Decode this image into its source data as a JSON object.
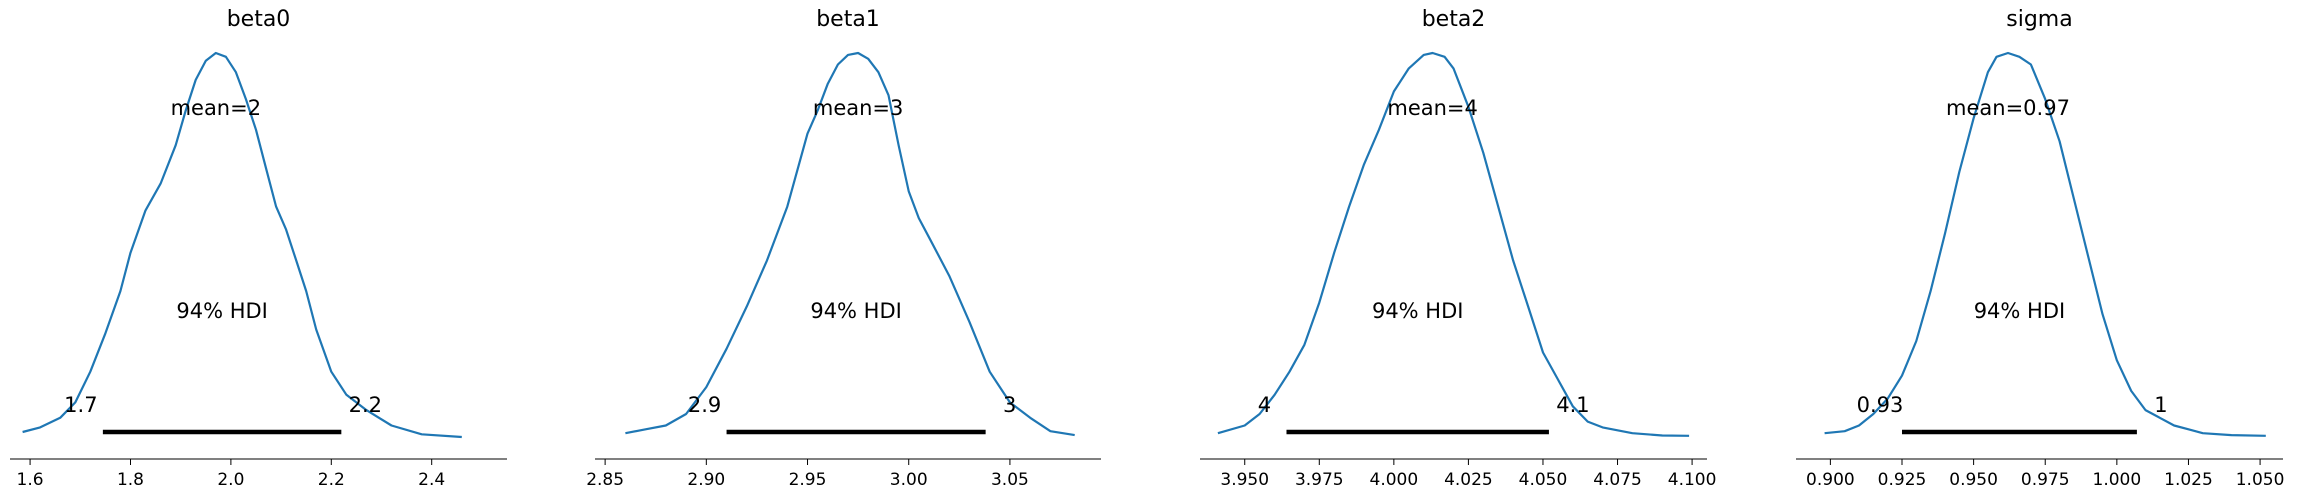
{
  "chart_data": [
    {
      "type": "line",
      "title": "beta0",
      "xlim": [
        1.56,
        2.55
      ],
      "xticks": [
        1.6,
        1.8,
        2.0,
        2.2,
        2.4
      ],
      "xtick_labels": [
        "1.6",
        "1.8",
        "2.0",
        "2.2",
        "2.4"
      ],
      "mean_label": "mean=2",
      "hdi_label": "94% HDI",
      "hdi": [
        1.745,
        2.22
      ],
      "hdi_labels": [
        "1.7",
        "2.2"
      ],
      "density": {
        "x": [
          1.585,
          1.62,
          1.66,
          1.69,
          1.72,
          1.75,
          1.78,
          1.8,
          1.83,
          1.86,
          1.89,
          1.91,
          1.93,
          1.95,
          1.97,
          1.99,
          2.01,
          2.03,
          2.05,
          2.07,
          2.09,
          2.11,
          2.13,
          2.15,
          2.17,
          2.2,
          2.23,
          2.27,
          2.32,
          2.38,
          2.46
        ],
        "y": [
          0.013,
          0.025,
          0.05,
          0.09,
          0.17,
          0.27,
          0.38,
          0.48,
          0.59,
          0.66,
          0.76,
          0.85,
          0.93,
          0.98,
          1.0,
          0.99,
          0.95,
          0.88,
          0.8,
          0.7,
          0.6,
          0.54,
          0.46,
          0.38,
          0.28,
          0.17,
          0.11,
          0.07,
          0.03,
          0.007,
          0.0
        ]
      }
    },
    {
      "type": "line",
      "title": "beta1",
      "xlim": [
        2.845,
        3.095
      ],
      "xticks": [
        2.85,
        2.9,
        2.95,
        3.0,
        3.05
      ],
      "xtick_labels": [
        "2.85",
        "2.90",
        "2.95",
        "3.00",
        "3.05"
      ],
      "mean_label": "mean=3",
      "hdi_label": "94% HDI",
      "hdi": [
        2.91,
        3.038
      ],
      "hdi_labels": [
        "2.9",
        "3"
      ],
      "density": {
        "x": [
          2.86,
          2.87,
          2.88,
          2.89,
          2.9,
          2.91,
          2.92,
          2.93,
          2.94,
          2.95,
          2.955,
          2.96,
          2.965,
          2.97,
          2.975,
          2.98,
          2.985,
          2.99,
          2.995,
          3.0,
          3.005,
          3.01,
          3.02,
          3.03,
          3.04,
          3.05,
          3.06,
          3.07,
          3.082
        ],
        "y": [
          0.01,
          0.02,
          0.03,
          0.06,
          0.13,
          0.23,
          0.34,
          0.46,
          0.6,
          0.79,
          0.85,
          0.92,
          0.97,
          0.995,
          1.0,
          0.985,
          0.95,
          0.89,
          0.76,
          0.64,
          0.57,
          0.52,
          0.42,
          0.3,
          0.17,
          0.09,
          0.05,
          0.015,
          0.005
        ]
      }
    },
    {
      "type": "line",
      "title": "beta2",
      "xlim": [
        3.935,
        4.105
      ],
      "xticks": [
        3.95,
        3.975,
        4.0,
        4.025,
        4.05,
        4.075,
        4.1
      ],
      "xtick_labels": [
        "3.950",
        "3.975",
        "4.000",
        "4.025",
        "4.050",
        "4.075",
        "4.100"
      ],
      "mean_label": "mean=4",
      "hdi_label": "94% HDI",
      "hdi": [
        3.964,
        4.052
      ],
      "hdi_labels": [
        "4",
        "4.1"
      ],
      "density": {
        "x": [
          3.941,
          3.95,
          3.955,
          3.96,
          3.965,
          3.97,
          3.975,
          3.98,
          3.985,
          3.99,
          3.995,
          4.0,
          4.005,
          4.01,
          4.013,
          4.017,
          4.02,
          4.025,
          4.03,
          4.035,
          4.04,
          4.045,
          4.05,
          4.055,
          4.06,
          4.065,
          4.07,
          4.08,
          4.09,
          4.099
        ],
        "y": [
          0.01,
          0.03,
          0.06,
          0.11,
          0.17,
          0.24,
          0.35,
          0.48,
          0.6,
          0.71,
          0.8,
          0.9,
          0.96,
          0.995,
          1.0,
          0.99,
          0.96,
          0.86,
          0.74,
          0.6,
          0.46,
          0.34,
          0.22,
          0.15,
          0.08,
          0.04,
          0.025,
          0.01,
          0.004,
          0.003
        ]
      }
    },
    {
      "type": "line",
      "title": "sigma",
      "xlim": [
        0.888,
        1.058
      ],
      "xticks": [
        0.9,
        0.925,
        0.95,
        0.975,
        1.0,
        1.025,
        1.05
      ],
      "xtick_labels": [
        "0.900",
        "0.925",
        "0.950",
        "0.975",
        "1.000",
        "1.025",
        "1.050"
      ],
      "mean_label": "mean=0.97",
      "hdi_label": "94% HDI",
      "hdi": [
        0.925,
        1.007
      ],
      "hdi_labels": [
        "0.93",
        "1"
      ],
      "density": {
        "x": [
          0.898,
          0.905,
          0.91,
          0.915,
          0.92,
          0.925,
          0.93,
          0.935,
          0.94,
          0.945,
          0.95,
          0.955,
          0.958,
          0.962,
          0.966,
          0.97,
          0.975,
          0.98,
          0.985,
          0.99,
          0.995,
          1.0,
          1.005,
          1.01,
          1.015,
          1.02,
          1.025,
          1.03,
          1.04,
          1.052
        ],
        "y": [
          0.01,
          0.015,
          0.03,
          0.06,
          0.1,
          0.16,
          0.25,
          0.38,
          0.53,
          0.69,
          0.83,
          0.95,
          0.99,
          1.0,
          0.99,
          0.97,
          0.88,
          0.77,
          0.62,
          0.47,
          0.32,
          0.2,
          0.12,
          0.07,
          0.05,
          0.03,
          0.02,
          0.01,
          0.005,
          0.003
        ]
      }
    }
  ]
}
